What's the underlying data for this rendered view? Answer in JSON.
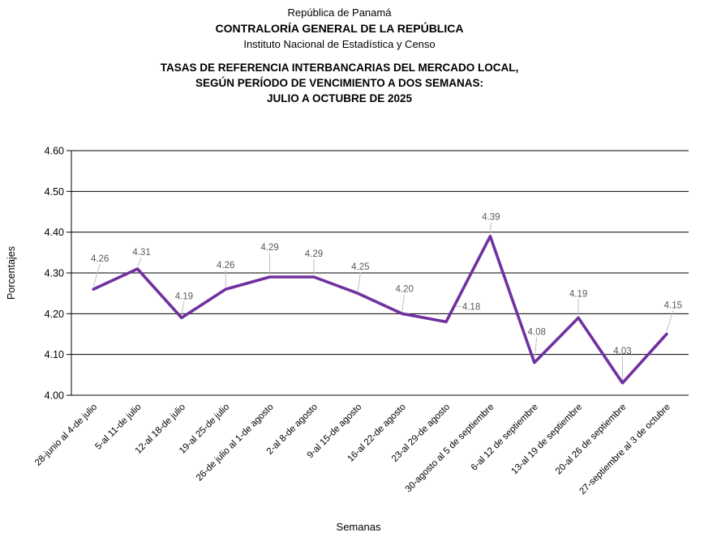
{
  "header": {
    "country": "República de Panamá",
    "institution": "CONTRALORÍA GENERAL DE LA REPÚBLICA",
    "department": "Instituto Nacional de Estadística y Censo"
  },
  "title": {
    "line1": "TASAS DE REFERENCIA INTERBANCARIAS DEL MERCADO LOCAL,",
    "line2": "SEGÚN PERÍODO DE VENCIMIENTO A DOS SEMANAS:",
    "line3": "JULIO A OCTUBRE DE 2025"
  },
  "chart_data": {
    "type": "line",
    "categories": [
      "28-junio al 4-de julio",
      "5-al 11-de julio",
      "12-al 18-de julio",
      "19-al 25-de julio",
      "26-de julio al 1-de agosto",
      "2-al 8-de agosto",
      "9-al 15-de agosto",
      "16-al 22-de agosto",
      "23-al 29-de agosto",
      "30-agosto al 5 de septiembre",
      "6-al 12 de septiembre",
      "13-al 19 de septiembre",
      "20-al 26 de septiembre",
      "27-septiembre al 3 de octubre"
    ],
    "values": [
      4.26,
      4.31,
      4.19,
      4.26,
      4.29,
      4.29,
      4.25,
      4.2,
      4.18,
      4.39,
      4.08,
      4.19,
      4.03,
      4.15
    ],
    "data_labels": [
      "4.26",
      "4.31",
      "4.19",
      "4.26",
      "4.29",
      "4.29",
      "4.25",
      "4.20",
      "4.18",
      "4.39",
      "4.08",
      "4.19",
      "4.03",
      "4.15"
    ],
    "xlabel": "Semanas",
    "ylabel": "Porcentajes",
    "ylim": [
      4.0,
      4.6
    ],
    "ytick_labels": [
      "4.00",
      "4.10",
      "4.20",
      "4.30",
      "4.40",
      "4.50",
      "4.60"
    ],
    "grid": true,
    "legend": "none",
    "colors": {
      "line": "#7030A0",
      "data_label": "#595959",
      "leader_line": "#BFBFBF",
      "axis": "#000000",
      "gridline": "#000000",
      "tick_label": "#000000"
    }
  }
}
